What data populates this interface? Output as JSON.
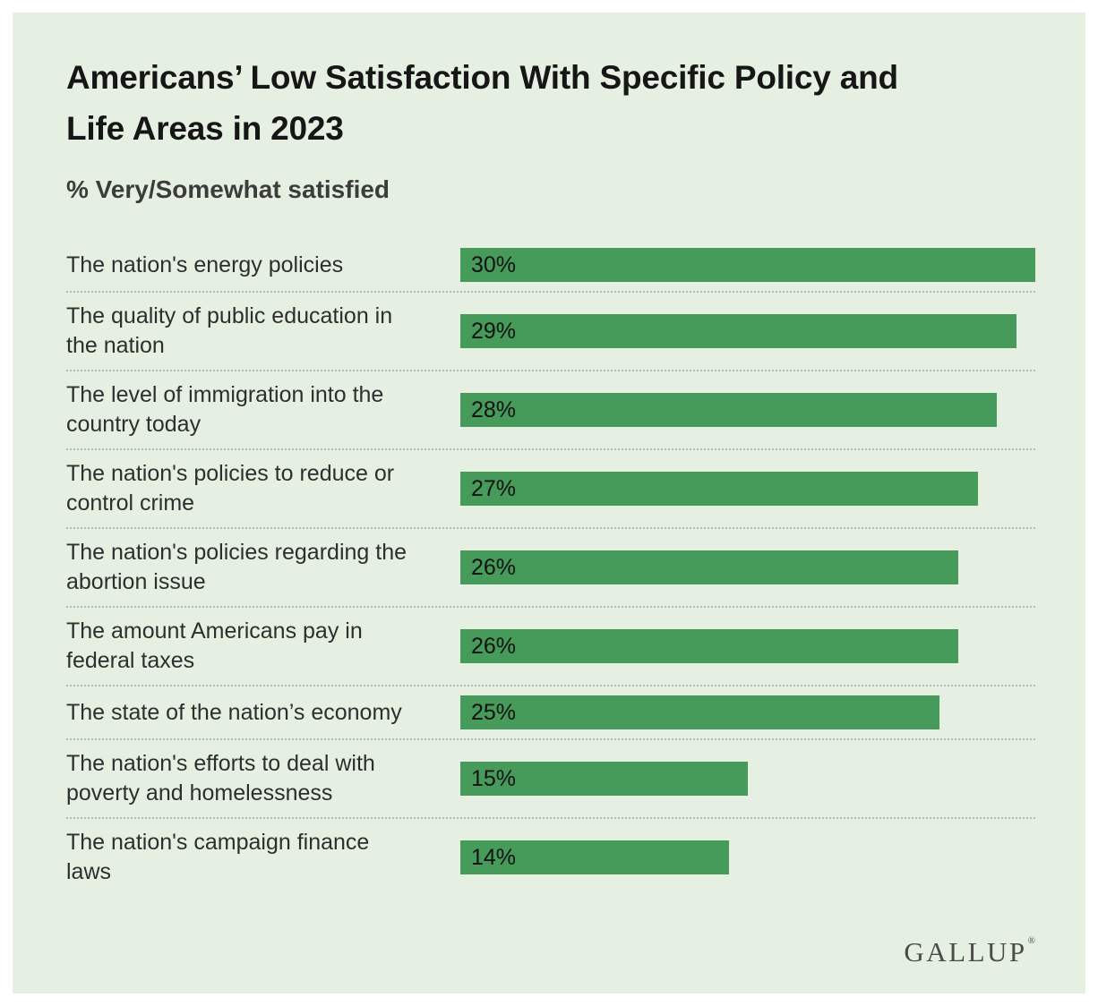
{
  "header": {
    "title": "Americans’ Low Satisfaction With Specific Policy and\nLife Areas in 2023",
    "subtitle": "% Very/Somewhat satisfied"
  },
  "rows": [
    {
      "label": "The nation's energy policies",
      "value": 30,
      "value_label": "30%"
    },
    {
      "label": "The quality of public education in\nthe nation",
      "value": 29,
      "value_label": "29%"
    },
    {
      "label": "The level of immigration into the\ncountry today",
      "value": 28,
      "value_label": "28%"
    },
    {
      "label": "The nation's policies to reduce or\ncontrol crime",
      "value": 27,
      "value_label": "27%"
    },
    {
      "label": "The nation's policies regarding the\nabortion issue",
      "value": 26,
      "value_label": "26%"
    },
    {
      "label": "The amount Americans pay in\nfederal taxes",
      "value": 26,
      "value_label": "26%"
    },
    {
      "label": "The state of the nation’s economy",
      "value": 25,
      "value_label": "25%"
    },
    {
      "label": "The nation's efforts to deal with\npoverty and homelessness",
      "value": 15,
      "value_label": "15%"
    },
    {
      "label": "The nation's campaign finance\nlaws",
      "value": 14,
      "value_label": "14%"
    }
  ],
  "footer": {
    "logo_text": "GALLUP",
    "logo_mark": "®"
  },
  "colors": {
    "panel_background": "#e5f0e2",
    "bar_green": "#469a5a",
    "separator": "#b4bfb0",
    "title_text": "#161616",
    "label_text": "#2e2e2e",
    "logo_text": "#4b4b4b"
  },
  "chart_data": {
    "type": "bar",
    "orientation": "horizontal",
    "title": "Americans’ Low Satisfaction With Specific Policy and Life Areas in 2023",
    "subtitle": "% Very/Somewhat satisfied",
    "categories": [
      "The nation's energy policies",
      "The quality of public education in the nation",
      "The level of immigration into the country today",
      "The nation's policies to reduce or control crime",
      "The nation's policies regarding the abortion issue",
      "The amount Americans pay in federal taxes",
      "The state of the nation’s economy",
      "The nation's efforts to deal with poverty and homelessness",
      "The nation's campaign finance laws"
    ],
    "values": [
      30,
      29,
      28,
      27,
      26,
      26,
      25,
      15,
      14
    ],
    "unit": "%",
    "xlim": [
      0,
      30
    ],
    "grid": false,
    "legend": false,
    "data_labels": "inside-left",
    "source_logo": "GALLUP"
  }
}
